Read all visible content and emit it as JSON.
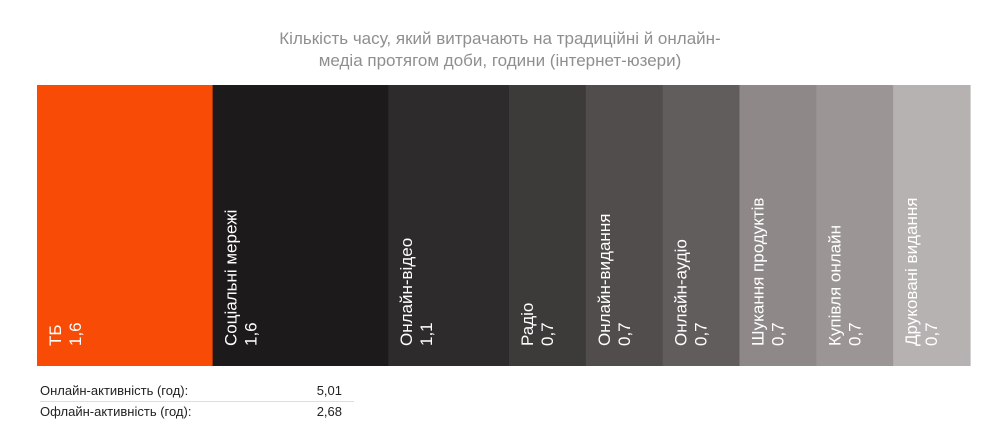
{
  "chart_data": {
    "type": "bar",
    "title_lines": [
      "Кількість часу, який витрачають на традиційні й онлайн-",
      "медіа протягом доби, години (інтернет-юзери)"
    ],
    "categories": [
      "ТБ",
      "Соціальні мережі",
      "Онлайн-відео",
      "Радіо",
      "Онлайн-видання",
      "Онлайн-аудіо",
      "Шукання продуктів",
      "Купівля онлайн",
      "Друковані видання"
    ],
    "value_labels": [
      "1,6",
      "1,6",
      "1,1",
      "0,7",
      "0,7",
      "0,7",
      "0,7",
      "0,7",
      "0,7"
    ],
    "values": [
      1.6,
      1.6,
      1.1,
      0.7,
      0.7,
      0.7,
      0.7,
      0.7,
      0.7
    ],
    "colors": [
      "#f74b06",
      "#1c1a1a",
      "#2d2b2b",
      "#3d3a3a",
      "#514d4d",
      "#625d5d",
      "#8e8888",
      "#9b9595",
      "#b7b2b2"
    ]
  },
  "stats": [
    {
      "label": "Онлайн-активність (год):",
      "value": "5,01"
    },
    {
      "label": "Офлайн-активність (год):",
      "value": "2,68"
    }
  ]
}
